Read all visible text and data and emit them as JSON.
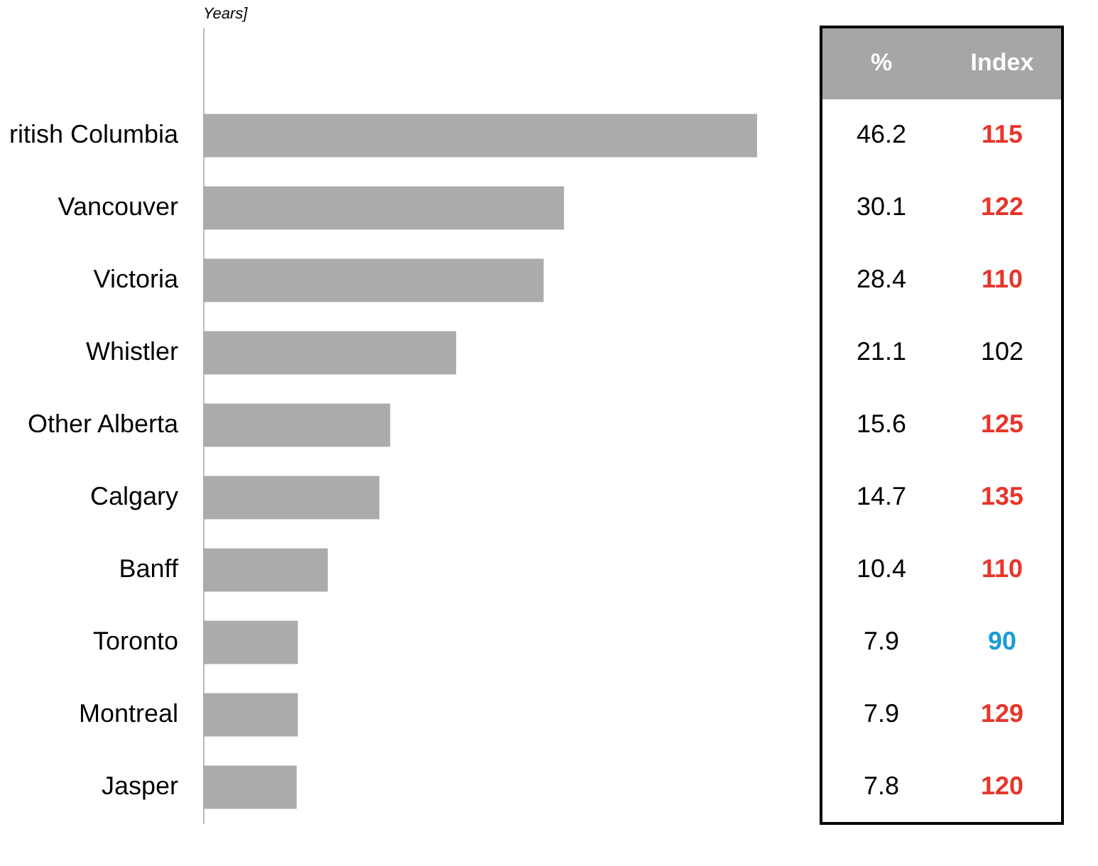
{
  "chart_data": [
    {
      "type": "bar",
      "orientation": "horizontal",
      "title": "Years]",
      "tick_labels": "y",
      "data_labels": true,
      "categories": [
        "ritish Columbia",
        "Vancouver",
        "Victoria",
        "Whistler",
        "Other Alberta",
        "Calgary",
        "Banff",
        "Toronto",
        "Montreal",
        "Jasper"
      ],
      "series": [
        {
          "name": "%",
          "color": "#ababab",
          "values": [
            46.2,
            30.1,
            28.4,
            21.1,
            15.6,
            14.7,
            10.4,
            7.9,
            7.9,
            7.8
          ]
        }
      ]
    },
    {
      "type": "other",
      "title": "Index",
      "data_labels": true,
      "categories": [
        null,
        null,
        null,
        null,
        null,
        null,
        null,
        null,
        null,
        null
      ],
      "values": [
        115,
        122,
        110,
        102,
        125,
        135,
        110,
        90,
        129,
        120
      ],
      "colors": [
        "#e8352a",
        "#e8352a",
        "#e8352a",
        "#000000",
        "#e8352a",
        "#e8352a",
        "#e8352a",
        "#1a9bd7",
        "#e8352a",
        "#e8352a"
      ]
    }
  ]
}
